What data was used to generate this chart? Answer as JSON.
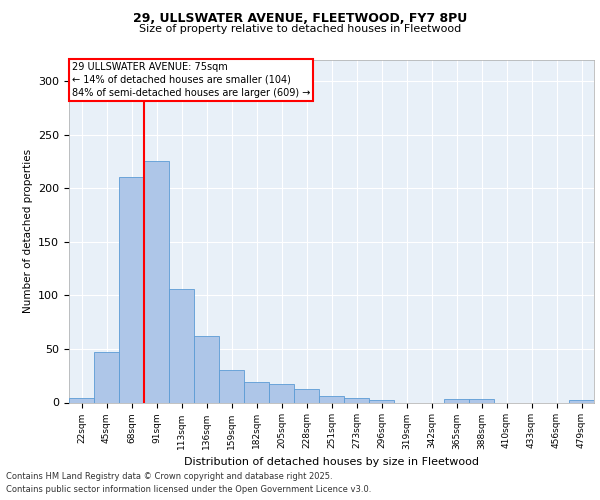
{
  "title_line1": "29, ULLSWATER AVENUE, FLEETWOOD, FY7 8PU",
  "title_line2": "Size of property relative to detached houses in Fleetwood",
  "xlabel": "Distribution of detached houses by size in Fleetwood",
  "ylabel": "Number of detached properties",
  "bar_labels": [
    "22sqm",
    "45sqm",
    "68sqm",
    "91sqm",
    "113sqm",
    "136sqm",
    "159sqm",
    "182sqm",
    "205sqm",
    "228sqm",
    "251sqm",
    "273sqm",
    "296sqm",
    "319sqm",
    "342sqm",
    "365sqm",
    "388sqm",
    "410sqm",
    "433sqm",
    "456sqm",
    "479sqm"
  ],
  "bar_values": [
    4,
    47,
    211,
    226,
    106,
    62,
    30,
    19,
    17,
    13,
    6,
    4,
    2,
    0,
    0,
    3,
    3,
    0,
    0,
    0,
    2
  ],
  "bar_color": "#aec6e8",
  "bar_edge_color": "#5b9bd5",
  "red_line_x": 2.5,
  "annotation_title": "29 ULLSWATER AVENUE: 75sqm",
  "annotation_line2": "← 14% of detached houses are smaller (104)",
  "annotation_line3": "84% of semi-detached houses are larger (609) →",
  "ylim": [
    0,
    320
  ],
  "yticks": [
    0,
    50,
    100,
    150,
    200,
    250,
    300
  ],
  "footer_line1": "Contains HM Land Registry data © Crown copyright and database right 2025.",
  "footer_line2": "Contains public sector information licensed under the Open Government Licence v3.0.",
  "plot_bg_color": "#e8f0f8",
  "fig_bg_color": "#ffffff"
}
